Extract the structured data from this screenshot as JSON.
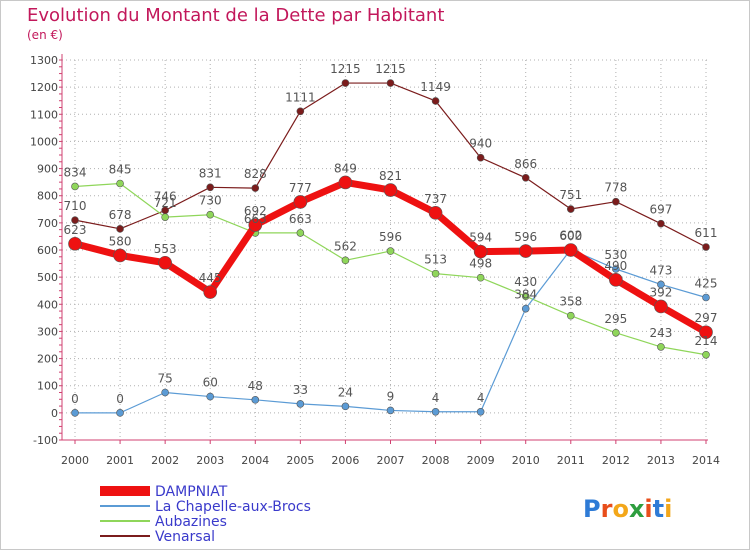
{
  "title": "Evolution du Montant de la Dette par Habitant",
  "subtitle": "(en €)",
  "logo": {
    "text": "Proxiti",
    "letter_colors": [
      "#2e7bd6",
      "#e84e1b",
      "#f3a71a",
      "#2e9e3f",
      "#e84e1b",
      "#2e7bd6",
      "#f3a71a"
    ]
  },
  "chart_data": {
    "type": "line",
    "title": "Evolution du Montant de la Dette par Habitant",
    "ylabel": "(en €)",
    "xlabel": "",
    "x": [
      2000,
      2001,
      2002,
      2003,
      2004,
      2005,
      2006,
      2007,
      2008,
      2009,
      2010,
      2011,
      2012,
      2013,
      2014
    ],
    "ylim": [
      -100,
      1300
    ],
    "yticks": [
      -100,
      0,
      100,
      200,
      300,
      400,
      500,
      600,
      700,
      800,
      900,
      1000,
      1100,
      1200,
      1300
    ],
    "grid": true,
    "legend_position": "bottom-left",
    "series": [
      {
        "name": "Venarsal",
        "color": "#7b1c1c",
        "values": [
          710,
          678,
          746,
          831,
          828,
          1111,
          1215,
          1215,
          1149,
          940,
          866,
          751,
          778,
          697,
          611
        ],
        "labels": [
          "710",
          "678",
          "746",
          "831",
          "828",
          "1111",
          "1215",
          "1215",
          "1149",
          "940",
          "866",
          "751",
          "778",
          "697",
          "611"
        ]
      },
      {
        "name": "Aubazines",
        "color": "#8fd65a",
        "values": [
          834,
          845,
          721,
          730,
          663,
          663,
          562,
          596,
          513,
          498,
          430,
          358,
          295,
          243,
          214
        ],
        "labels": [
          "834",
          "845",
          "721",
          "730",
          "663",
          "663",
          "562",
          "596",
          "513",
          "498",
          "430",
          "358",
          "295",
          "243",
          "214"
        ]
      },
      {
        "name": "La Chapelle-aux-Brocs",
        "color": "#5b9bd5",
        "values": [
          0,
          0,
          75,
          60,
          48,
          33,
          24,
          9,
          4,
          4,
          384,
          602,
          530,
          473,
          425
        ],
        "labels": [
          "0",
          "0",
          "75",
          "60",
          "48",
          "33",
          "24",
          "9",
          "4",
          "4",
          "384",
          "602",
          "530",
          "473",
          "425"
        ]
      },
      {
        "name": "DAMPNIAT",
        "color": "#ee1111",
        "values": [
          623,
          580,
          553,
          445,
          692,
          777,
          849,
          821,
          737,
          594,
          596,
          600,
          490,
          392,
          297
        ],
        "labels": [
          "623",
          "580",
          "553",
          "445",
          "692",
          "777",
          "849",
          "821",
          "737",
          "594",
          "596",
          "600",
          "490",
          "392",
          "297"
        ]
      }
    ],
    "legend_order": [
      "DAMPNIAT",
      "La Chapelle-aux-Brocs",
      "Aubazines",
      "Venarsal"
    ]
  }
}
